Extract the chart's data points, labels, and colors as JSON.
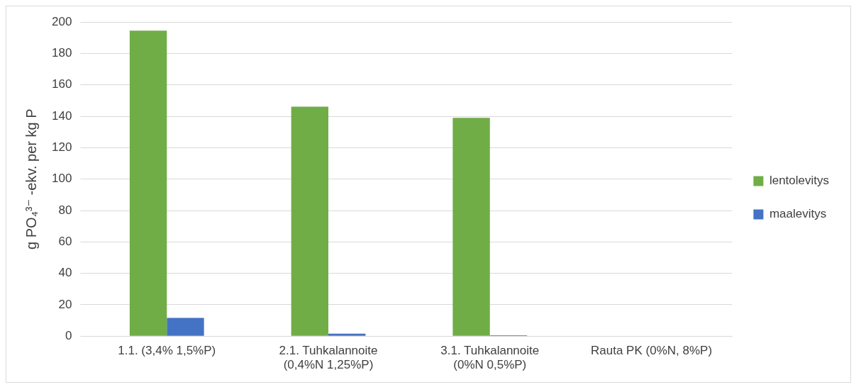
{
  "chart_data": {
    "type": "bar",
    "ylabel": "g PO₄³⁻ -ekv. per kg P",
    "categories": [
      "1.1. (3,4% 1,5%P)",
      "2.1. Tuhkalannoite (0,4%N 1,25%P)",
      "3.1. Tuhkalannoite (0%N 0,5%P)",
      "Rauta PK (0%N, 8%P)"
    ],
    "series": [
      {
        "name": "lentolevitys",
        "color": "#70ad47",
        "values": [
          194.6,
          146.1,
          139.0,
          0
        ]
      },
      {
        "name": "maalevitys",
        "color": "#4472c4",
        "values": [
          11.6,
          1.6,
          0.5,
          0
        ]
      }
    ],
    "ylim": [
      0,
      200
    ],
    "yticks": [
      0,
      20,
      40,
      60,
      80,
      100,
      120,
      140,
      160,
      180,
      200
    ],
    "grid": "y",
    "legend": "right"
  }
}
